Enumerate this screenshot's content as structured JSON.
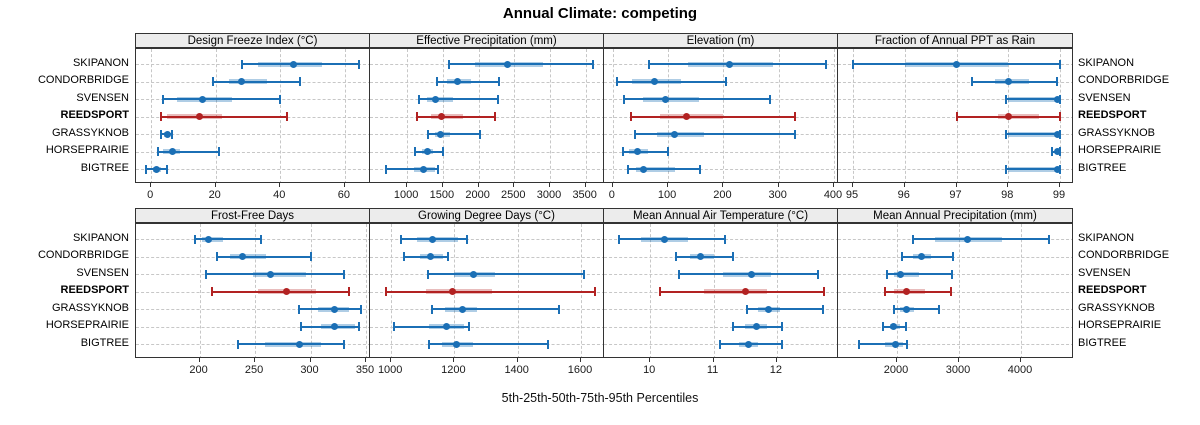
{
  "title": "Annual Climate: competing",
  "caption": "5th-25th-50th-75th-95th Percentiles",
  "stations": [
    "SKIPANON",
    "CONDORBRIDGE",
    "SVENSEN",
    "REEDSPORT",
    "GRASSYKNOB",
    "HORSEPRAIRIE",
    "BIGTREE"
  ],
  "highlight_station": "REEDSPORT",
  "colors": {
    "series": "#1b6fb5",
    "series_band": "rgba(27,111,181,0.35)",
    "highlight": "#b22222",
    "highlight_band": "rgba(178,34,34,0.30)",
    "strip_bg": "#ececec",
    "grid": "#c7c7c7",
    "border": "#333333"
  },
  "chart_data": {
    "type": "dotplot-percentiles",
    "percentile_labels": [
      "5th",
      "25th",
      "50th",
      "75th",
      "95th"
    ],
    "legend_position": "none",
    "grid": "dashed",
    "panels": [
      {
        "title": "Design Freeze Index (°C)",
        "row": 0,
        "col": 0,
        "ticks": [
          0,
          20,
          40,
          60
        ],
        "xlim": [
          -4.7,
          68.1
        ],
        "series": {
          "SKIPANON": [
            28,
            33,
            44,
            53,
            64.5
          ],
          "CONDORBRIDGE": [
            19,
            24,
            28,
            36,
            46
          ],
          "SVENSEN": [
            3.5,
            8,
            16,
            25,
            40
          ],
          "REEDSPORT": [
            3,
            5,
            15,
            22,
            42
          ],
          "GRASSYKNOB": [
            3,
            4,
            5,
            5.5,
            6.5
          ],
          "HORSEPRAIRIE": [
            2,
            3.5,
            6.5,
            9,
            21
          ],
          "BIGTREE": [
            -1.5,
            0.5,
            1.5,
            3,
            5
          ]
        }
      },
      {
        "title": "Effective Precipitation (mm)",
        "row": 0,
        "col": 1,
        "ticks": [
          1000,
          1500,
          2000,
          2500,
          3000,
          3500
        ],
        "xlim": [
          480,
          3770
        ],
        "series": {
          "SKIPANON": [
            1580,
            1950,
            2400,
            2900,
            3600
          ],
          "CONDORBRIDGE": [
            1420,
            1560,
            1700,
            1890,
            2280
          ],
          "SVENSEN": [
            1160,
            1280,
            1390,
            1650,
            2270
          ],
          "REEDSPORT": [
            1140,
            1330,
            1480,
            1780,
            2230
          ],
          "GRASSYKNOB": [
            1290,
            1390,
            1460,
            1600,
            2020
          ],
          "HORSEPRAIRIE": [
            1110,
            1210,
            1280,
            1360,
            1500
          ],
          "BIGTREE": [
            700,
            1090,
            1230,
            1390,
            1430
          ]
        }
      },
      {
        "title": "Elevation (m)",
        "row": 0,
        "col": 2,
        "ticks": [
          0,
          100,
          200,
          300,
          400
        ],
        "xlim": [
          -16,
          409
        ],
        "series": {
          "SKIPANON": [
            65,
            135,
            210,
            290,
            385
          ],
          "CONDORBRIDGE": [
            8,
            35,
            75,
            123,
            205
          ],
          "SVENSEN": [
            20,
            55,
            95,
            155,
            285
          ],
          "REEDSPORT": [
            33,
            85,
            133,
            200,
            330
          ],
          "GRASSYKNOB": [
            40,
            80,
            112,
            165,
            330
          ],
          "HORSEPRAIRIE": [
            18,
            30,
            45,
            63,
            100
          ],
          "BIGTREE": [
            27,
            42,
            55,
            112,
            158
          ]
        }
      },
      {
        "title": "Fraction of Annual PPT as Rain",
        "row": 0,
        "col": 3,
        "ticks": [
          95,
          96,
          97,
          98,
          99
        ],
        "xlim": [
          94.71,
          99.27
        ],
        "series": {
          "SKIPANON": [
            95.0,
            96.0,
            97.0,
            98.0,
            99.0
          ],
          "CONDORBRIDGE": [
            97.3,
            97.75,
            98.0,
            98.4,
            98.95
          ],
          "SVENSEN": [
            97.95,
            98.0,
            98.95,
            99.0,
            99.0
          ],
          "REEDSPORT": [
            97.0,
            97.8,
            98.0,
            98.6,
            99.0
          ],
          "GRASSYKNOB": [
            97.95,
            98.0,
            98.95,
            99.0,
            99.0
          ],
          "HORSEPRAIRIE": [
            98.85,
            98.9,
            98.95,
            99.0,
            99.0
          ],
          "BIGTREE": [
            97.95,
            98.0,
            98.95,
            99.0,
            99.0
          ]
        }
      },
      {
        "title": "Frost-Free Days",
        "row": 1,
        "col": 0,
        "ticks": [
          200,
          250,
          300,
          350
        ],
        "xlim": [
          142.7,
          354.5
        ],
        "series": {
          "SKIPANON": [
            196,
            202,
            208,
            221,
            255
          ],
          "CONDORBRIDGE": [
            216,
            227,
            239,
            260,
            300
          ],
          "SVENSEN": [
            206,
            248,
            264,
            296,
            330
          ],
          "REEDSPORT": [
            211,
            253,
            278,
            305,
            335
          ],
          "GRASSYKNOB": [
            290,
            307,
            322,
            335,
            345
          ],
          "HORSEPRAIRIE": [
            291,
            309,
            322,
            340,
            344
          ],
          "BIGTREE": [
            235,
            259,
            290,
            309,
            330
          ]
        }
      },
      {
        "title": "Growing Degree Days (°C)",
        "row": 1,
        "col": 1,
        "ticks": [
          1000,
          1200,
          1400,
          1600
        ],
        "xlim": [
          933,
          1676
        ],
        "series": {
          "SKIPANON": [
            1030,
            1080,
            1130,
            1210,
            1240
          ],
          "CONDORBRIDGE": [
            1040,
            1090,
            1125,
            1165,
            1180
          ],
          "SVENSEN": [
            1115,
            1200,
            1260,
            1330,
            1610
          ],
          "REEDSPORT": [
            985,
            1110,
            1195,
            1320,
            1645
          ],
          "GRASSYKNOB": [
            1130,
            1170,
            1225,
            1270,
            1530
          ],
          "HORSEPRAIRIE": [
            1010,
            1120,
            1175,
            1230,
            1245
          ],
          "BIGTREE": [
            1120,
            1160,
            1205,
            1260,
            1495
          ]
        }
      },
      {
        "title": "Mean Annual Air Temperature (°C)",
        "row": 1,
        "col": 2,
        "ticks": [
          10,
          11,
          12
        ],
        "xlim": [
          9.27,
          12.98
        ],
        "series": {
          "SKIPANON": [
            9.5,
            9.85,
            10.23,
            10.6,
            11.18
          ],
          "CONDORBRIDGE": [
            10.4,
            10.62,
            10.8,
            11.0,
            11.3
          ],
          "SVENSEN": [
            10.45,
            11.15,
            11.6,
            11.9,
            12.65
          ],
          "REEDSPORT": [
            10.15,
            10.85,
            11.5,
            11.85,
            12.75
          ],
          "GRASSYKNOB": [
            11.52,
            11.7,
            11.87,
            12.05,
            12.73
          ],
          "HORSEPRAIRIE": [
            11.3,
            11.5,
            11.68,
            11.85,
            12.08
          ],
          "BIGTREE": [
            11.1,
            11.4,
            11.55,
            11.7,
            12.08
          ]
        }
      },
      {
        "title": "Mean Annual Precipitation (mm)",
        "row": 1,
        "col": 3,
        "ticks": [
          2000,
          3000,
          4000
        ],
        "xlim": [
          1048,
          4855
        ],
        "series": {
          "SKIPANON": [
            2250,
            2620,
            3130,
            3700,
            4450
          ],
          "CONDORBRIDGE": [
            2080,
            2250,
            2390,
            2550,
            2900
          ],
          "SVENSEN": [
            1830,
            1950,
            2060,
            2350,
            2890
          ],
          "REEDSPORT": [
            1800,
            1950,
            2160,
            2450,
            2870
          ],
          "GRASSYKNOB": [
            1950,
            2050,
            2150,
            2280,
            2680
          ],
          "HORSEPRAIRIE": [
            1780,
            1880,
            1950,
            2050,
            2150
          ],
          "BIGTREE": [
            1380,
            1800,
            1970,
            2100,
            2160
          ]
        }
      }
    ]
  }
}
